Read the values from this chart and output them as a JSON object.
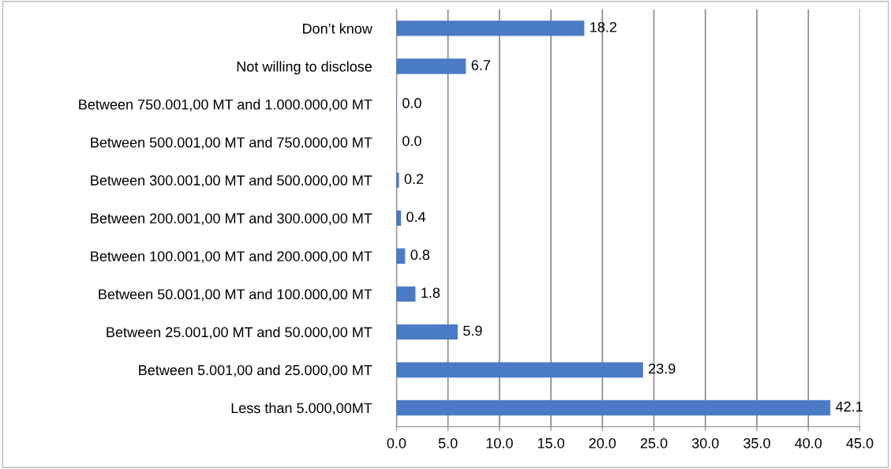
{
  "chart_data": {
    "type": "bar",
    "orientation": "horizontal",
    "categories": [
      "Don’t know",
      "Not willing to disclose",
      "Between 750.001,00 MT and 1.000.000,00 MT",
      "Between 500.001,00 MT and 750.000,00 MT",
      "Between 300.001,00 MT and 500.000,00 MT",
      "Between 200.001,00 MT and 300.000,00 MT",
      "Between 100.001,00 MT and 200.000,00 MT",
      "Between 50.001,00 MT and 100.000,00 MT",
      "Between 25.001,00 MT and 50.000,00 MT",
      "Between 5.001,00 and 25.000,00 MT",
      "Less than 5.000,00MT"
    ],
    "values": [
      18.2,
      6.7,
      0.0,
      0.0,
      0.2,
      0.4,
      0.8,
      1.8,
      5.9,
      23.9,
      42.1
    ],
    "value_labels": [
      "18.2",
      "6.7",
      "0.0",
      "0.0",
      "0.2",
      "0.4",
      "0.8",
      "1.8",
      "5.9",
      "23.9",
      "42.1"
    ],
    "color": "#4a7bc4",
    "xlim": [
      0,
      45
    ],
    "xticks": [
      {
        "value": 0,
        "label": "0.0"
      },
      {
        "value": 5,
        "label": "5.0"
      },
      {
        "value": 10,
        "label": "10.0"
      },
      {
        "value": 15,
        "label": "15.0"
      },
      {
        "value": 20,
        "label": "20.0"
      },
      {
        "value": 25,
        "label": "25.0"
      },
      {
        "value": 30,
        "label": "30.0"
      },
      {
        "value": 35,
        "label": "35.0"
      },
      {
        "value": 40,
        "label": "40.0"
      },
      {
        "value": 45,
        "label": "45.0"
      }
    ],
    "grid": "x",
    "legend": false
  }
}
